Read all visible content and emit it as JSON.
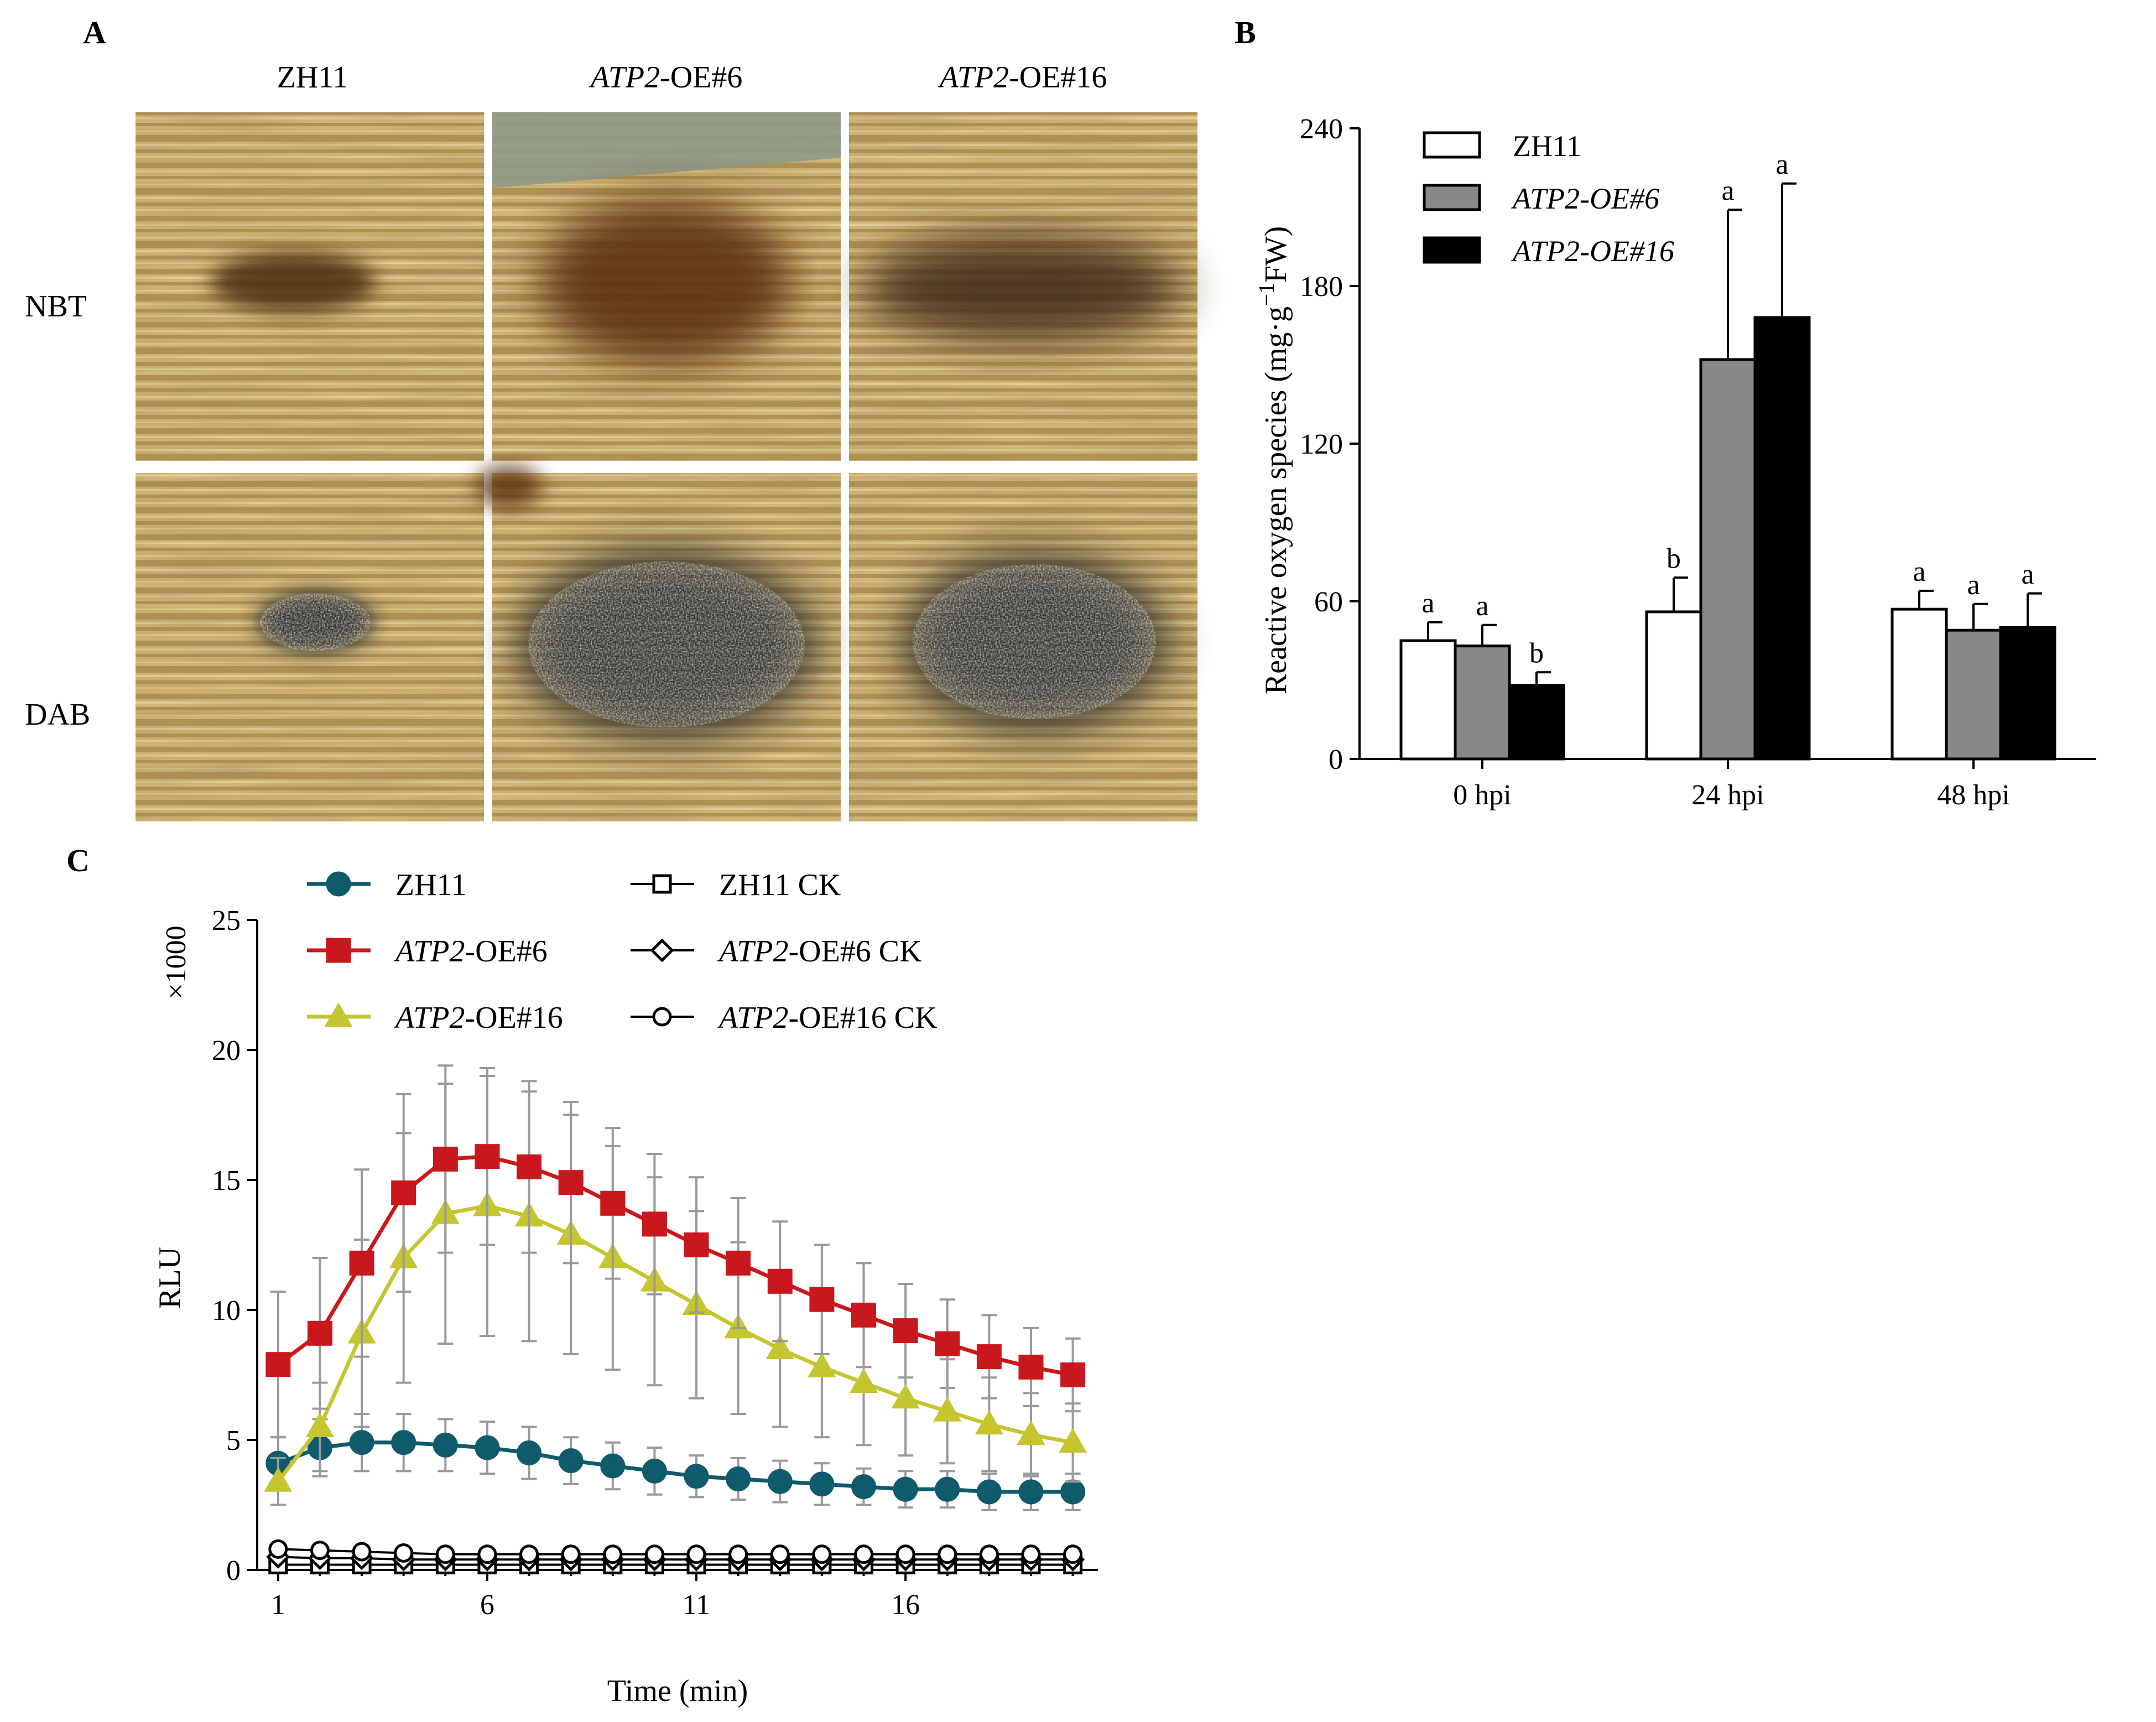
{
  "panels": {
    "A": {
      "letter": "A",
      "columns": [
        {
          "prefix": "",
          "suffix": "ZH11"
        },
        {
          "prefix": "ATP2",
          "suffix": "-OE#6"
        },
        {
          "prefix": "ATP2",
          "suffix": "-OE#16"
        }
      ],
      "rows": [
        "NBT",
        "DAB"
      ],
      "colors": {
        "tissue_light": "#d9bd7c",
        "tissue_dark": "#a8874a",
        "nbt_stain": "#4a2a10",
        "dab_stain": "#1e2226"
      }
    },
    "B": {
      "letter": "B"
    },
    "C": {
      "letter": "C"
    }
  },
  "chart_data": [
    {
      "panel": "B",
      "type": "bar",
      "categories": [
        "0 hpi",
        "24 hpi",
        "48 hpi"
      ],
      "series": [
        {
          "name": "ZH11",
          "italic": false,
          "color": "#ffffff",
          "values": [
            45,
            56,
            57
          ],
          "errors": [
            7,
            13,
            7
          ],
          "letters": [
            "a",
            "b",
            "a"
          ]
        },
        {
          "name": "ATP2-OE#6",
          "italic": true,
          "color": "#888888",
          "values": [
            43,
            152,
            49
          ],
          "errors": [
            8,
            57,
            10
          ],
          "letters": [
            "a",
            "a",
            "a"
          ]
        },
        {
          "name": "ATP2-OE#16",
          "italic": true,
          "color": "#000000",
          "values": [
            28,
            168,
            50
          ],
          "errors": [
            5,
            51,
            13
          ],
          "letters": [
            "b",
            "a",
            "a"
          ]
        }
      ],
      "title": "",
      "xlabel": "",
      "ylabel": "Reactive oxygen species (mg·g",
      "ylabel_sup": "−1",
      "ylabel_end": "FW)",
      "ylim": [
        0,
        240
      ],
      "yticks": [
        0,
        60,
        120,
        180,
        240
      ],
      "legend_position": "top-left",
      "grid": false
    },
    {
      "panel": "C",
      "type": "line",
      "x": [
        1,
        2,
        3,
        4,
        5,
        6,
        7,
        8,
        9,
        10,
        11,
        12,
        13,
        14,
        15,
        16,
        17,
        18,
        19,
        20
      ],
      "xticks": [
        1,
        6,
        11,
        16
      ],
      "xlim": [
        0.5,
        20.6
      ],
      "ylim": [
        0,
        25
      ],
      "yticks": [
        0,
        5,
        10,
        15,
        20,
        25
      ],
      "xlabel": "Time (min)",
      "ylabel": "RLU",
      "scale_label": "×1000",
      "legend_position": "top",
      "grid": false,
      "series": [
        {
          "name_prefix": "",
          "name": "ZH11",
          "marker": "circle",
          "filled": true,
          "color": "#0f5a6b",
          "values": [
            4.1,
            4.7,
            4.9,
            4.9,
            4.8,
            4.7,
            4.5,
            4.2,
            4.0,
            3.8,
            3.6,
            3.5,
            3.4,
            3.3,
            3.2,
            3.1,
            3.1,
            3.0,
            3.0,
            3.0
          ],
          "errors": [
            1.0,
            1.1,
            1.1,
            1.1,
            1.0,
            1.0,
            1.0,
            0.9,
            0.9,
            0.9,
            0.8,
            0.8,
            0.8,
            0.8,
            0.7,
            0.7,
            0.7,
            0.7,
            0.7,
            0.7
          ]
        },
        {
          "name_prefix": "ATP2",
          "name": "-OE#6",
          "marker": "square",
          "filled": true,
          "color": "#c8181e",
          "values": [
            7.9,
            9.1,
            11.8,
            14.5,
            15.8,
            15.9,
            15.5,
            14.9,
            14.1,
            13.3,
            12.5,
            11.8,
            11.1,
            10.4,
            9.8,
            9.2,
            8.7,
            8.2,
            7.8,
            7.5
          ],
          "errors": [
            2.8,
            2.9,
            3.6,
            3.8,
            3.6,
            3.4,
            3.3,
            3.1,
            2.9,
            2.7,
            2.6,
            2.5,
            2.3,
            2.1,
            2.0,
            1.8,
            1.7,
            1.6,
            1.5,
            1.4
          ]
        },
        {
          "name_prefix": "ATP2",
          "name": "-OE#16",
          "marker": "triangle",
          "filled": true,
          "color": "#c5c530",
          "values": [
            3.4,
            5.5,
            9.1,
            12.0,
            13.7,
            14.0,
            13.6,
            12.9,
            12.0,
            11.1,
            10.2,
            9.3,
            8.5,
            7.8,
            7.2,
            6.6,
            6.1,
            5.6,
            5.2,
            4.9
          ],
          "errors": [
            0.9,
            1.7,
            3.6,
            4.8,
            5.0,
            5.0,
            4.8,
            4.6,
            4.3,
            4.0,
            3.6,
            3.3,
            3.0,
            2.7,
            2.4,
            2.2,
            2.0,
            1.8,
            1.6,
            1.5
          ]
        },
        {
          "name_prefix": "",
          "name": "ZH11 CK",
          "marker": "square",
          "filled": false,
          "color": "#000000",
          "values": [
            0.2,
            0.2,
            0.2,
            0.2,
            0.2,
            0.2,
            0.2,
            0.2,
            0.2,
            0.2,
            0.2,
            0.2,
            0.2,
            0.2,
            0.2,
            0.2,
            0.2,
            0.2,
            0.2,
            0.2
          ],
          "errors": [
            0,
            0,
            0,
            0,
            0,
            0,
            0,
            0,
            0,
            0,
            0,
            0,
            0,
            0,
            0,
            0,
            0,
            0,
            0,
            0
          ]
        },
        {
          "name_prefix": "ATP2",
          "name": "-OE#6 CK",
          "marker": "diamond",
          "filled": false,
          "color": "#000000",
          "values": [
            0.5,
            0.45,
            0.45,
            0.4,
            0.4,
            0.4,
            0.4,
            0.4,
            0.4,
            0.4,
            0.4,
            0.4,
            0.4,
            0.4,
            0.4,
            0.4,
            0.4,
            0.4,
            0.4,
            0.4
          ],
          "errors": [
            0,
            0,
            0,
            0,
            0,
            0,
            0,
            0,
            0,
            0,
            0,
            0,
            0,
            0,
            0,
            0,
            0,
            0,
            0,
            0
          ]
        },
        {
          "name_prefix": "ATP2",
          "name": "-OE#16 CK",
          "marker": "circle",
          "filled": false,
          "color": "#000000",
          "values": [
            0.8,
            0.75,
            0.7,
            0.65,
            0.6,
            0.6,
            0.6,
            0.6,
            0.6,
            0.6,
            0.6,
            0.6,
            0.6,
            0.6,
            0.6,
            0.6,
            0.6,
            0.6,
            0.6,
            0.6
          ],
          "errors": [
            0,
            0,
            0,
            0,
            0,
            0,
            0,
            0,
            0,
            0,
            0,
            0,
            0,
            0,
            0,
            0,
            0,
            0,
            0,
            0
          ]
        }
      ]
    }
  ]
}
